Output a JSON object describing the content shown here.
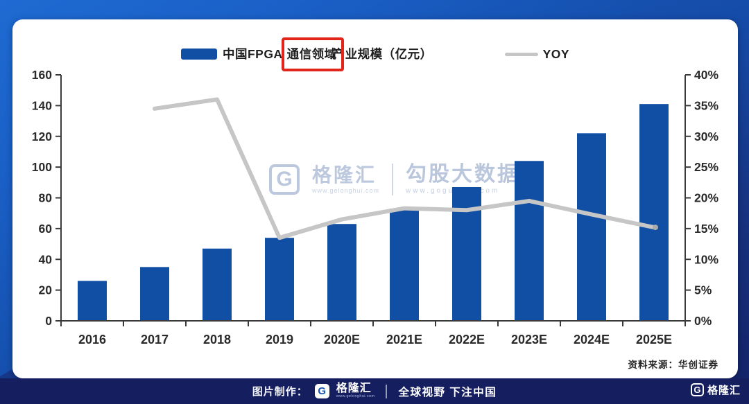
{
  "legend": {
    "bar_label_prefix": "中国FPGA",
    "bar_label_highlight": "通信领域",
    "bar_label_suffix": "产业规模（亿元）",
    "line_label": "YOY",
    "bar_color": "#114fa4",
    "line_color": "#c6c6c6",
    "highlight_box_color": "#e1251b"
  },
  "watermark": {
    "g_glyph": "G",
    "brand": "格隆汇",
    "brand_url": "www.gelonghui.com",
    "data_brand": "勾股大数据",
    "data_url": "www.gogudata.com"
  },
  "source_note": "资料来源：华创证券",
  "footer": {
    "made_by_label": "图片制作：",
    "logo_glyph": "G",
    "brand": "格隆汇",
    "brand_url": "www.gelonghui.com",
    "slogan": "全球视野 下注中国",
    "corner_glyph": "G",
    "corner_brand": "格隆汇"
  },
  "chart_data": {
    "type": "bar",
    "categories": [
      "2016",
      "2017",
      "2018",
      "2019",
      "2020E",
      "2021E",
      "2022E",
      "2023E",
      "2024E",
      "2025E"
    ],
    "series": [
      {
        "name": "中国FPGA通信领域产业规模（亿元）",
        "type": "bar",
        "axis": "left",
        "values": [
          26,
          35,
          47,
          54,
          63,
          73,
          87,
          104,
          122,
          141
        ]
      },
      {
        "name": "YOY",
        "type": "line",
        "axis": "right",
        "values": [
          null,
          34.5,
          36,
          13.5,
          16.5,
          18.3,
          18,
          19.5,
          17.3,
          15.2
        ]
      }
    ],
    "left_axis": {
      "min": 0,
      "max": 160,
      "step": 20,
      "tick_labels": [
        "0",
        "20",
        "40",
        "60",
        "80",
        "100",
        "120",
        "140",
        "160"
      ]
    },
    "right_axis": {
      "min": 0,
      "max": 40,
      "step": 5,
      "tick_labels": [
        "0%",
        "5%",
        "10%",
        "15%",
        "20%",
        "25%",
        "30%",
        "35%",
        "40%"
      ]
    },
    "grid": false,
    "legend_position": "top",
    "axis_color": "#3a3a3a",
    "label_color": "#2a2a2a"
  }
}
